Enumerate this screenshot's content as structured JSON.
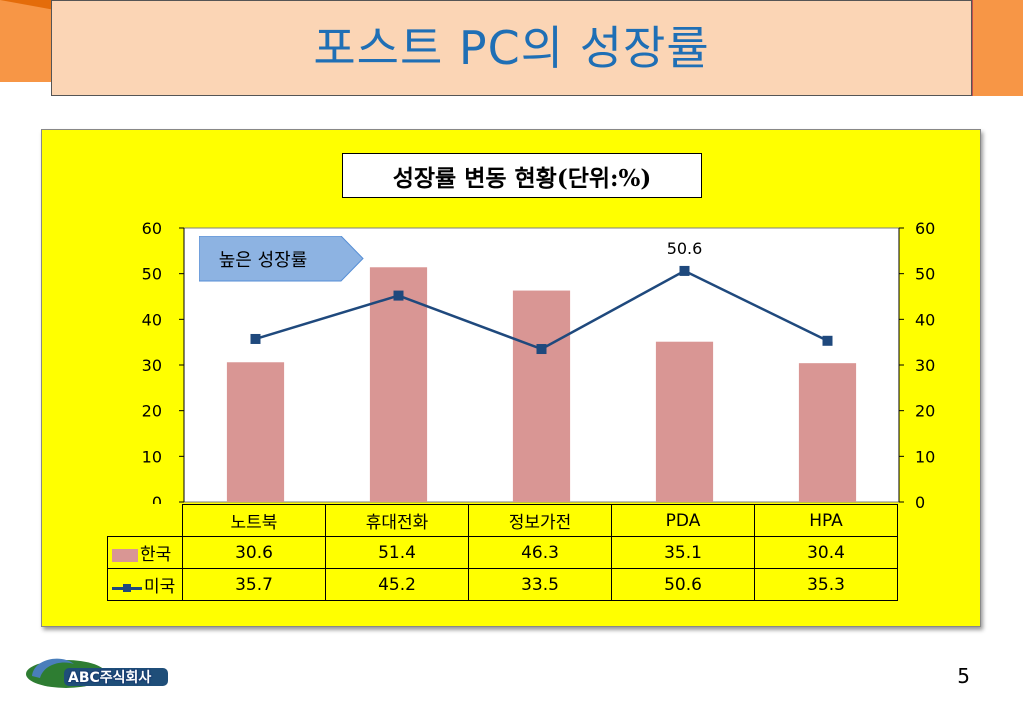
{
  "slide": {
    "title": "포스트 PC의 성장률",
    "page_number": "5",
    "logo_text": "ABC주식회사"
  },
  "callout": {
    "text": "높은 성장률"
  },
  "colors": {
    "bar": "#d99694",
    "line": "#1f497d",
    "panel": "#ffff00",
    "title_blue": "#1f6fb5",
    "banner": "#fbd5b5",
    "orange": "#f79646"
  },
  "chart_data": {
    "type": "bar",
    "title": "성장률 변동 현황(단위:%)",
    "categories": [
      "노트북",
      "휴대전화",
      "정보가전",
      "PDA",
      "HPA"
    ],
    "series": [
      {
        "name": "한국",
        "type": "bar",
        "values": [
          30.6,
          51.4,
          46.3,
          35.1,
          30.4
        ]
      },
      {
        "name": "미국",
        "type": "line",
        "values": [
          35.7,
          45.2,
          33.5,
          50.6,
          35.3
        ]
      }
    ],
    "ylim": [
      0,
      60
    ],
    "y_ticks": [
      "0",
      "10",
      "20",
      "30",
      "40",
      "50",
      "60"
    ],
    "y2_ticks": [
      "0",
      "10",
      "20",
      "30",
      "40",
      "50",
      "60"
    ],
    "data_labels": [
      {
        "series": "미국",
        "category": "PDA",
        "text": "50.6"
      }
    ],
    "data_table": true,
    "grid": false
  }
}
